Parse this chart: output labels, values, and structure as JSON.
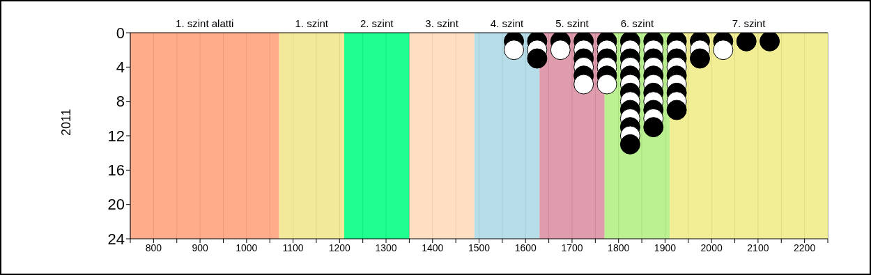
{
  "chart_data": {
    "type": "scatter",
    "ylabel": "2011",
    "x": [
      1575,
      1575,
      1625,
      1625,
      1625,
      1675,
      1675,
      1725,
      1725,
      1725,
      1725,
      1725,
      1725,
      1775,
      1775,
      1775,
      1775,
      1775,
      1775,
      1825,
      1825,
      1825,
      1825,
      1825,
      1825,
      1825,
      1825,
      1825,
      1825,
      1825,
      1825,
      1825,
      1875,
      1875,
      1875,
      1875,
      1875,
      1875,
      1875,
      1875,
      1875,
      1875,
      1875,
      1925,
      1925,
      1925,
      1925,
      1925,
      1925,
      1925,
      1925,
      1925,
      1975,
      1975,
      1975,
      2025,
      2025,
      2075,
      2125
    ],
    "values": [
      1,
      2,
      1,
      2,
      3,
      1,
      2,
      1,
      2,
      3,
      4,
      5,
      6,
      1,
      2,
      3,
      4,
      5,
      6,
      1,
      2,
      3,
      4,
      5,
      6,
      7,
      8,
      9,
      10,
      11,
      12,
      13,
      1,
      2,
      3,
      4,
      5,
      6,
      7,
      8,
      9,
      10,
      11,
      1,
      2,
      3,
      4,
      5,
      6,
      7,
      8,
      9,
      1,
      2,
      3,
      1,
      2,
      1,
      1
    ],
    "colors": [
      "#000000",
      "#ffffff",
      "#000000",
      "#ffffff",
      "#000000",
      "#000000",
      "#ffffff",
      "#000000",
      "#ffffff",
      "#000000",
      "#ffffff",
      "#000000",
      "#ffffff",
      "#000000",
      "#ffffff",
      "#000000",
      "#ffffff",
      "#000000",
      "#ffffff",
      "#000000",
      "#ffffff",
      "#000000",
      "#ffffff",
      "#000000",
      "#ffffff",
      "#000000",
      "#ffffff",
      "#000000",
      "#ffffff",
      "#000000",
      "#ffffff",
      "#000000",
      "#000000",
      "#ffffff",
      "#000000",
      "#ffffff",
      "#000000",
      "#ffffff",
      "#000000",
      "#ffffff",
      "#000000",
      "#ffffff",
      "#000000",
      "#000000",
      "#ffffff",
      "#000000",
      "#ffffff",
      "#000000",
      "#ffffff",
      "#000000",
      "#ffffff",
      "#000000",
      "#000000",
      "#ffffff",
      "#000000",
      "#000000",
      "#ffffff",
      "#000000",
      "#000000"
    ],
    "marker": "circle",
    "xlim": [
      750,
      2250
    ],
    "xticks": [
      {
        "value": 750,
        "label": null
      },
      800,
      {
        "value": 850,
        "label": null
      },
      900,
      {
        "value": 950,
        "label": null
      },
      1000,
      {
        "value": 1050,
        "label": null
      },
      1100,
      {
        "value": 1150,
        "label": null
      },
      1200,
      {
        "value": 1250,
        "label": null
      },
      1300,
      {
        "value": 1350,
        "label": null
      },
      1400,
      {
        "value": 1450,
        "label": null
      },
      1500,
      {
        "value": 1550,
        "label": null
      },
      1600,
      {
        "value": 1650,
        "label": null
      },
      1700,
      {
        "value": 1750,
        "label": null
      },
      1800,
      {
        "value": 1850,
        "label": null
      },
      1900,
      {
        "value": 1950,
        "label": null
      },
      2000,
      {
        "value": 2050,
        "label": null
      },
      2100,
      {
        "value": 2150,
        "label": null
      },
      2200,
      {
        "value": 2250,
        "label": null
      }
    ],
    "ylim": [
      24,
      0
    ],
    "yticks": [
      0,
      4,
      8,
      12,
      16,
      20,
      24
    ],
    "grid": "x",
    "legend": false,
    "bands": [
      {
        "axis": "x",
        "from": 750,
        "to": 1070,
        "label": "1. szint alatti",
        "color": "#ffa07a"
      },
      {
        "axis": "x",
        "from": 1070,
        "to": 1210,
        "label": "1. szint",
        "color": "#f0e68c"
      },
      {
        "axis": "x",
        "from": 1210,
        "to": 1350,
        "label": "2. szint",
        "color": "#00ff7f"
      },
      {
        "axis": "x",
        "from": 1350,
        "to": 1490,
        "label": "3. szint",
        "color": "#ffdab9"
      },
      {
        "axis": "x",
        "from": 1490,
        "to": 1630,
        "label": "4. szint",
        "color": "#add8e6"
      },
      {
        "axis": "x",
        "from": 1630,
        "to": 1770,
        "label": "5. szint",
        "color": "#db8ea0"
      },
      {
        "axis": "x",
        "from": 1770,
        "to": 1910,
        "label": "6. szint",
        "color": "#b3ef83"
      },
      {
        "axis": "x",
        "from": 1910,
        "to": 2250,
        "label": "7. szint",
        "color": "#f0ec86"
      }
    ]
  }
}
